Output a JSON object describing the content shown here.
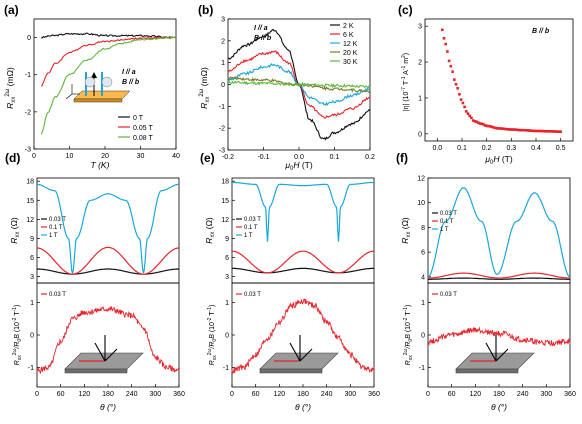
{
  "panels": {
    "a": {
      "label": "(a)",
      "ylabel_html": "R_xx^2ω (mΩ)",
      "xlabel": "T (K)",
      "note1": "I // a",
      "note2": "B // b",
      "legend": [
        "0 T",
        "0.05 T",
        "0.08 T"
      ],
      "xticks": [
        "0",
        "10",
        "20",
        "30",
        "40"
      ],
      "yticks": [
        "0",
        "-1",
        "-2",
        "-3"
      ]
    },
    "b": {
      "label": "(b)",
      "ylabel": "R_xx^2ω (mΩ)",
      "xlabel": "μ0H (T)",
      "note1": "I // a",
      "note2": "B // b",
      "legend": [
        "2 K",
        "6 K",
        "12 K",
        "20 K",
        "30 K"
      ],
      "xticks": [
        "-0.2",
        "-0.1",
        "0.0",
        "0.1",
        "0.2"
      ],
      "yticks": [
        "3",
        "2",
        "1",
        "0",
        "-1",
        "-2",
        "-3"
      ]
    },
    "c": {
      "label": "(c)",
      "ylabel": "|η| (10^-7 T^-1 A^-1 m^2)",
      "xlabel": "μ0H (T)",
      "note": "B // b",
      "xticks": [
        "0.0",
        "0.1",
        "0.2",
        "0.3",
        "0.4",
        "0.5"
      ],
      "yticks": [
        "0",
        "1",
        "2",
        "3"
      ]
    },
    "d": {
      "label": "(d)",
      "top_ylabel": "Rxx (Ω)",
      "top_legend": [
        "0.03 T",
        "0.1 T",
        "1 T"
      ],
      "top_yticks": [
        "18",
        "15",
        "12",
        "9",
        "6",
        "3"
      ],
      "bottom_legend": "0.03 T",
      "bottom_ylabel": "Rxx^2ω/R0B (10^-2 T^-1)",
      "bottom_yticks": [
        "1",
        "0",
        "-1"
      ],
      "xlabel": "θ (°)",
      "xticks": [
        "0",
        "60",
        "120",
        "180",
        "240",
        "300",
        "360"
      ]
    },
    "e": {
      "label": "(e)",
      "top_ylabel": "Rxx (Ω)",
      "top_legend": [
        "0.03 T",
        "0.1 T",
        "1 T"
      ],
      "top_yticks": [
        "18",
        "15",
        "12",
        "9",
        "6",
        "3"
      ],
      "bottom_legend": "0.03 T",
      "bottom_ylabel": "Rxx^2ω/R0B (10^-2 T^-1)",
      "bottom_yticks": [
        "1",
        "0",
        "-1"
      ],
      "xlabel": "θ (°)",
      "xticks": [
        "0",
        "60",
        "120",
        "180",
        "240",
        "300",
        "360"
      ]
    },
    "f": {
      "label": "(f)",
      "top_ylabel": "Rxx (Ω)",
      "top_legend": [
        "0.03 T",
        "0.1 T",
        "1 T"
      ],
      "top_yticks": [
        "12",
        "10",
        "8",
        "6",
        "4"
      ],
      "bottom_legend": "0.03 T",
      "bottom_ylabel": "Rxx^2ω/R0B (10^-2 T^-1)",
      "bottom_yticks": [
        "1",
        "0",
        "-1"
      ],
      "xlabel": "θ (°)",
      "xticks": [
        "0",
        "60",
        "120",
        "180",
        "240",
        "300",
        "360"
      ]
    }
  },
  "colors": {
    "black": "#111111",
    "red": "#e8232a",
    "cyan": "#1aa7dc",
    "green": "#5db83a",
    "olive": "#7a7a2a"
  },
  "chart_data": [
    {
      "type": "line",
      "panel": "a",
      "xlabel": "T (K)",
      "ylabel": "R_xx^2ω (mΩ)",
      "xlim": [
        0,
        40
      ],
      "ylim": [
        -3,
        0.5
      ],
      "series": [
        {
          "name": "0 T",
          "x": [
            2,
            5,
            10,
            15,
            20,
            30,
            40
          ],
          "y": [
            0.0,
            0.05,
            0.1,
            0.1,
            0.05,
            0.05,
            0.0
          ]
        },
        {
          "name": "0.05 T",
          "x": [
            2,
            4,
            6,
            10,
            15,
            20,
            30,
            40
          ],
          "y": [
            -1.3,
            -0.95,
            -0.7,
            -0.4,
            -0.2,
            -0.1,
            -0.02,
            0.0
          ]
        },
        {
          "name": "0.08 T",
          "x": [
            2,
            4,
            6,
            10,
            15,
            20,
            25,
            30,
            40
          ],
          "y": [
            -2.6,
            -2.0,
            -1.6,
            -1.0,
            -0.6,
            -0.3,
            -0.15,
            -0.05,
            0.0
          ]
        }
      ]
    },
    {
      "type": "line",
      "panel": "b",
      "xlabel": "μ0H (T)",
      "ylabel": "R_xx^2ω (mΩ)",
      "xlim": [
        -0.2,
        0.2
      ],
      "ylim": [
        -3,
        3
      ],
      "series": [
        {
          "name": "2 K",
          "x": [
            -0.2,
            -0.15,
            -0.1,
            -0.07,
            -0.03,
            0,
            0.03,
            0.07,
            0.1,
            0.15,
            0.2
          ],
          "y": [
            1.2,
            1.8,
            2.2,
            2.5,
            1.6,
            0,
            -1.6,
            -2.5,
            -2.2,
            -1.8,
            -1.2
          ]
        },
        {
          "name": "6 K",
          "x": [
            -0.2,
            -0.15,
            -0.1,
            -0.07,
            -0.03,
            0,
            0.03,
            0.07,
            0.1,
            0.15,
            0.2
          ],
          "y": [
            0.6,
            1.1,
            1.4,
            1.5,
            1.0,
            0,
            -1.0,
            -1.5,
            -1.4,
            -1.1,
            -0.6
          ]
        },
        {
          "name": "12 K",
          "x": [
            -0.2,
            -0.15,
            -0.1,
            -0.07,
            -0.03,
            0,
            0.03,
            0.07,
            0.1,
            0.15,
            0.2
          ],
          "y": [
            0.2,
            0.5,
            0.8,
            0.9,
            0.6,
            0,
            -0.6,
            -0.9,
            -0.8,
            -0.5,
            -0.2
          ]
        },
        {
          "name": "20 K",
          "x": [
            -0.2,
            -0.1,
            0,
            0.1,
            0.2
          ],
          "y": [
            0.3,
            0.2,
            0,
            -0.2,
            -0.3
          ]
        },
        {
          "name": "30 K",
          "x": [
            -0.2,
            -0.1,
            0,
            0.1,
            0.2
          ],
          "y": [
            0.1,
            0.05,
            0,
            -0.05,
            -0.1
          ]
        }
      ]
    },
    {
      "type": "scatter",
      "panel": "c",
      "xlabel": "μ0H (T)",
      "ylabel": "|η| (10^-7 T^-1 A^-1 m^2)",
      "xlim": [
        0,
        0.5
      ],
      "ylim": [
        0,
        3
      ],
      "x": [
        0.02,
        0.03,
        0.04,
        0.05,
        0.06,
        0.07,
        0.08,
        0.09,
        0.1,
        0.11,
        0.12,
        0.13,
        0.15,
        0.18,
        0.2,
        0.25,
        0.3,
        0.35,
        0.4,
        0.45,
        0.5
      ],
      "y": [
        2.9,
        2.6,
        2.3,
        2.0,
        1.75,
        1.5,
        1.3,
        1.1,
        0.9,
        0.75,
        0.6,
        0.5,
        0.35,
        0.28,
        0.22,
        0.15,
        0.12,
        0.1,
        0.08,
        0.07,
        0.06
      ]
    },
    {
      "type": "line",
      "panel": "d-top",
      "xlabel": "θ (°)",
      "ylabel": "Rxx (Ω)",
      "xlim": [
        0,
        360
      ],
      "ylim": [
        2,
        18.5
      ],
      "series": [
        {
          "name": "0.03 T",
          "x": [
            0,
            90,
            180,
            270,
            360
          ],
          "y": [
            4.2,
            3.4,
            4.2,
            3.4,
            4.2
          ]
        },
        {
          "name": "0.1 T",
          "x": [
            0,
            90,
            180,
            270,
            360
          ],
          "y": [
            7.5,
            3.4,
            7.6,
            3.4,
            7.5
          ]
        },
        {
          "name": "1 T",
          "x": [
            0,
            45,
            80,
            90,
            100,
            135,
            180,
            225,
            260,
            270,
            280,
            315,
            360
          ],
          "y": [
            17.5,
            16.5,
            9,
            3.5,
            9,
            15,
            16,
            15,
            9,
            3.6,
            9,
            16.5,
            17.5
          ]
        }
      ]
    },
    {
      "type": "line",
      "panel": "d-bottom",
      "xlabel": "θ (°)",
      "ylabel": "Rxx^2ω/R0B (10^-2 T^-1)",
      "xlim": [
        0,
        360
      ],
      "ylim": [
        -1.5,
        1.5
      ],
      "series": [
        {
          "name": "0.03 T",
          "x": [
            0,
            30,
            60,
            90,
            120,
            180,
            240,
            270,
            300,
            330,
            360
          ],
          "y": [
            -1.1,
            -1.0,
            -0.2,
            0.5,
            0.7,
            0.8,
            0.6,
            0.2,
            -0.7,
            -1.0,
            -1.1
          ]
        }
      ]
    },
    {
      "type": "line",
      "panel": "e-top",
      "xlabel": "θ (°)",
      "ylabel": "Rxx (Ω)",
      "xlim": [
        0,
        360
      ],
      "ylim": [
        2,
        18.5
      ],
      "series": [
        {
          "name": "0.03 T",
          "x": [
            0,
            90,
            180,
            270,
            360
          ],
          "y": [
            4.3,
            3.6,
            4.3,
            3.6,
            4.3
          ]
        },
        {
          "name": "0.1 T",
          "x": [
            0,
            90,
            180,
            270,
            360
          ],
          "y": [
            7.0,
            3.6,
            7.0,
            3.6,
            7.0
          ]
        },
        {
          "name": "1 T",
          "x": [
            0,
            60,
            85,
            90,
            95,
            120,
            180,
            240,
            265,
            270,
            275,
            300,
            360
          ],
          "y": [
            17.8,
            17.5,
            14,
            8.5,
            14,
            17.5,
            17.3,
            17.5,
            14,
            8.5,
            14,
            17.5,
            17.8
          ]
        }
      ]
    },
    {
      "type": "line",
      "panel": "e-bottom",
      "xlabel": "θ (°)",
      "ylabel": "Rxx^2ω/R0B (10^-2 T^-1)",
      "xlim": [
        0,
        360
      ],
      "ylim": [
        -1.5,
        1.5
      ],
      "series": [
        {
          "name": "0.03 T",
          "x": [
            0,
            30,
            60,
            90,
            120,
            150,
            180,
            210,
            240,
            270,
            300,
            330,
            360
          ],
          "y": [
            -1.1,
            -1.0,
            -0.6,
            -0.1,
            0.4,
            0.9,
            1.05,
            0.9,
            0.4,
            -0.1,
            -0.6,
            -1.0,
            -1.1
          ]
        }
      ]
    },
    {
      "type": "line",
      "panel": "f-top",
      "xlabel": "θ (°)",
      "ylabel": "Rxx (Ω)",
      "xlim": [
        0,
        360
      ],
      "ylim": [
        3.5,
        12
      ],
      "series": [
        {
          "name": "0.03 T",
          "x": [
            0,
            90,
            180,
            270,
            360
          ],
          "y": [
            3.8,
            3.9,
            3.8,
            3.9,
            3.8
          ]
        },
        {
          "name": "0.1 T",
          "x": [
            0,
            90,
            180,
            270,
            360
          ],
          "y": [
            3.9,
            4.3,
            3.9,
            4.3,
            3.9
          ]
        },
        {
          "name": "1 T",
          "x": [
            0,
            45,
            90,
            135,
            175,
            225,
            270,
            315,
            360
          ],
          "y": [
            4.0,
            8.5,
            11.2,
            8.5,
            4.2,
            8.5,
            10.8,
            8.5,
            4.0
          ]
        }
      ]
    },
    {
      "type": "line",
      "panel": "f-bottom",
      "xlabel": "θ (°)",
      "ylabel": "Rxx^2ω/R0B (10^-2 T^-1)",
      "xlim": [
        0,
        360
      ],
      "ylim": [
        -1.5,
        1.5
      ],
      "series": [
        {
          "name": "0.03 T",
          "x": [
            0,
            60,
            120,
            180,
            240,
            300,
            360
          ],
          "y": [
            -0.2,
            0.0,
            0.15,
            0.05,
            -0.15,
            -0.25,
            -0.2
          ]
        }
      ]
    }
  ]
}
